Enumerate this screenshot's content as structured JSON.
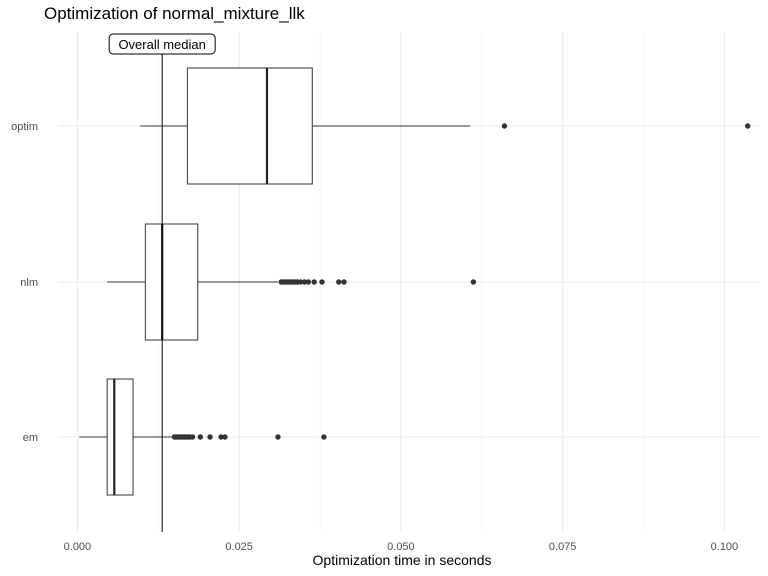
{
  "chart_data": {
    "type": "boxplot",
    "title": "Optimization of normal_mixture_llk",
    "xlabel": "Optimization time in seconds",
    "ylabel": "",
    "xlim": [
      -0.003,
      0.1055
    ],
    "xticks": [
      0.0,
      0.025,
      0.05,
      0.075,
      0.1
    ],
    "xtick_labels": [
      "0.000",
      "0.025",
      "0.050",
      "0.075",
      "0.100"
    ],
    "categories": [
      "optim",
      "nlm",
      "em"
    ],
    "boxes": [
      {
        "category": "optim",
        "whisker_low": 0.0097,
        "q1": 0.017,
        "median": 0.0293,
        "q3": 0.0363,
        "whisker_high": 0.0607,
        "outliers": [
          0.066,
          0.1036
        ]
      },
      {
        "category": "nlm",
        "whisker_low": 0.0046,
        "q1": 0.0105,
        "median": 0.0131,
        "q3": 0.0186,
        "whisker_high": 0.031,
        "outliers": [
          0.0315,
          0.0318,
          0.0321,
          0.0324,
          0.0327,
          0.033,
          0.0333,
          0.0337,
          0.034,
          0.0345,
          0.0351,
          0.0357,
          0.0366,
          0.0378,
          0.0404,
          0.0412,
          0.0612
        ]
      },
      {
        "category": "em",
        "whisker_low": 0.0003,
        "q1": 0.0046,
        "median": 0.0057,
        "q3": 0.0086,
        "whisker_high": 0.0148,
        "outliers": [
          0.015,
          0.0153,
          0.0156,
          0.0159,
          0.0162,
          0.0165,
          0.0168,
          0.0171,
          0.0174,
          0.0178,
          0.019,
          0.0205,
          0.0222,
          0.0228,
          0.031,
          0.0381
        ]
      }
    ],
    "reference_line": {
      "value": 0.0131,
      "label": "Overall median"
    },
    "grid": true,
    "legend": "none"
  }
}
